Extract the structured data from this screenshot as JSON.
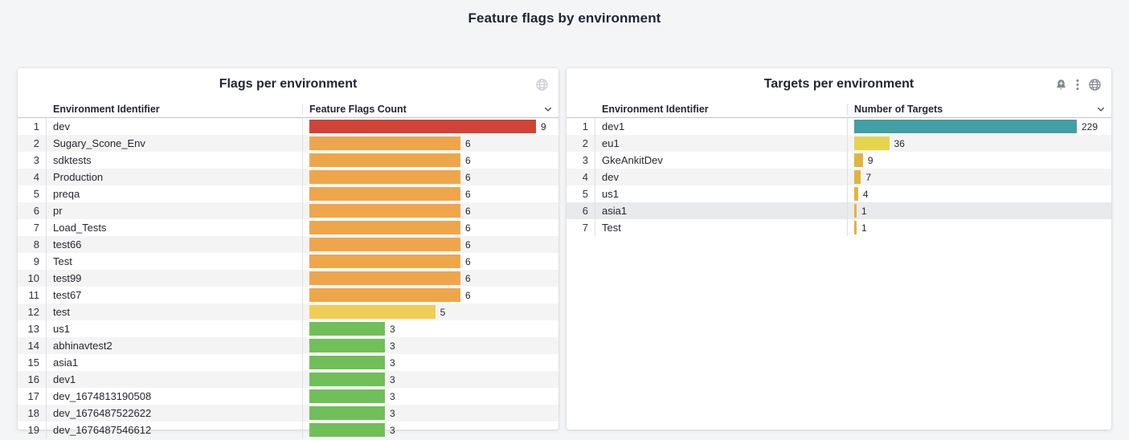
{
  "page": {
    "title": "Feature flags by environment",
    "background": "#f4f5f6"
  },
  "colors": {
    "red": "#cf4437",
    "orange": "#efa64b",
    "yellow": "#f0cd55",
    "green": "#70bf58",
    "teal": "#429fa5",
    "light_yellow": "#e6d44c",
    "gold": "#e0b441",
    "stripe": "#f4f4f5",
    "stripe_dark": "#e9eaec"
  },
  "panels": [
    {
      "title": "Flags per environment",
      "header_icons": [
        "globe-icon"
      ],
      "columns": {
        "identifier": "Environment Identifier",
        "count": "Feature Flags Count"
      },
      "gauge_max": 9,
      "rows": [
        {
          "index": 1,
          "name": "dev",
          "value": 9,
          "color": "#cf4437"
        },
        {
          "index": 2,
          "name": "Sugary_Scone_Env",
          "value": 6,
          "color": "#efa64b"
        },
        {
          "index": 3,
          "name": "sdktests",
          "value": 6,
          "color": "#efa64b"
        },
        {
          "index": 4,
          "name": "Production",
          "value": 6,
          "color": "#efa64b"
        },
        {
          "index": 5,
          "name": "preqa",
          "value": 6,
          "color": "#efa64b"
        },
        {
          "index": 6,
          "name": "pr",
          "value": 6,
          "color": "#efa64b"
        },
        {
          "index": 7,
          "name": "Load_Tests",
          "value": 6,
          "color": "#efa64b"
        },
        {
          "index": 8,
          "name": "test66",
          "value": 6,
          "color": "#efa64b"
        },
        {
          "index": 9,
          "name": "Test",
          "value": 6,
          "color": "#efa64b"
        },
        {
          "index": 10,
          "name": "test99",
          "value": 6,
          "color": "#efa64b"
        },
        {
          "index": 11,
          "name": "test67",
          "value": 6,
          "color": "#efa64b"
        },
        {
          "index": 12,
          "name": "test",
          "value": 5,
          "color": "#f0cd55"
        },
        {
          "index": 13,
          "name": "us1",
          "value": 3,
          "color": "#70bf58"
        },
        {
          "index": 14,
          "name": "abhinavtest2",
          "value": 3,
          "color": "#70bf58"
        },
        {
          "index": 15,
          "name": "asia1",
          "value": 3,
          "color": "#70bf58"
        },
        {
          "index": 16,
          "name": "dev1",
          "value": 3,
          "color": "#70bf58"
        },
        {
          "index": 17,
          "name": "dev_1674813190508",
          "value": 3,
          "color": "#70bf58"
        },
        {
          "index": 18,
          "name": "dev_1676487522622",
          "value": 3,
          "color": "#70bf58"
        },
        {
          "index": 19,
          "name": "dev_1676487546612",
          "value": 3,
          "color": "#70bf58"
        }
      ]
    },
    {
      "title": "Targets per environment",
      "header_icons": [
        "bell-plus-icon",
        "kebab-menu-icon",
        "globe-icon"
      ],
      "columns": {
        "identifier": "Environment Identifier",
        "count": "Number of Targets"
      },
      "gauge_max": 229,
      "rows": [
        {
          "index": 1,
          "name": "dev1",
          "value": 229,
          "color": "#429fa5"
        },
        {
          "index": 2,
          "name": "eu1",
          "value": 36,
          "color": "#e6d44c"
        },
        {
          "index": 3,
          "name": "GkeAnkitDev",
          "value": 9,
          "color": "#e0b441"
        },
        {
          "index": 4,
          "name": "dev",
          "value": 7,
          "color": "#e0b441"
        },
        {
          "index": 5,
          "name": "us1",
          "value": 4,
          "color": "#e0b441"
        },
        {
          "index": 6,
          "name": "asia1",
          "value": 1,
          "color": "#e0b441",
          "highlight": true
        },
        {
          "index": 7,
          "name": "Test",
          "value": 1,
          "color": "#e0b441"
        }
      ]
    }
  ]
}
